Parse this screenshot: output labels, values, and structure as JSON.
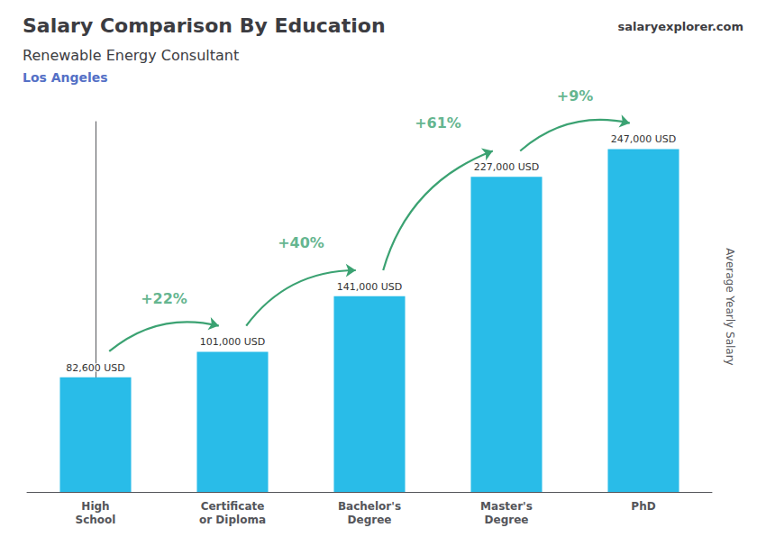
{
  "chart_data": {
    "type": "bar",
    "title": "Salary Comparison By Education",
    "subtitle": "Renewable Energy Consultant",
    "location": "Los Angeles",
    "source": "salaryexplorer.com",
    "ylabel": "Average Yearly Salary",
    "categories": [
      "High\nSchool",
      "Certificate\nor Diploma",
      "Bachelor's\nDegree",
      "Master's\nDegree",
      "PhD"
    ],
    "values": [
      82600,
      101000,
      141000,
      227000,
      247000
    ],
    "value_labels": [
      "82,600 USD",
      "101,000 USD",
      "141,000 USD",
      "227,000 USD",
      "247,000 USD"
    ],
    "data_labels": true,
    "color": "#29bce8",
    "ylim": [
      0,
      266760
    ],
    "annotations": [
      "+22%",
      "+40%",
      "+61%",
      "+9%"
    ],
    "grid": false,
    "tick_labels": "x"
  }
}
